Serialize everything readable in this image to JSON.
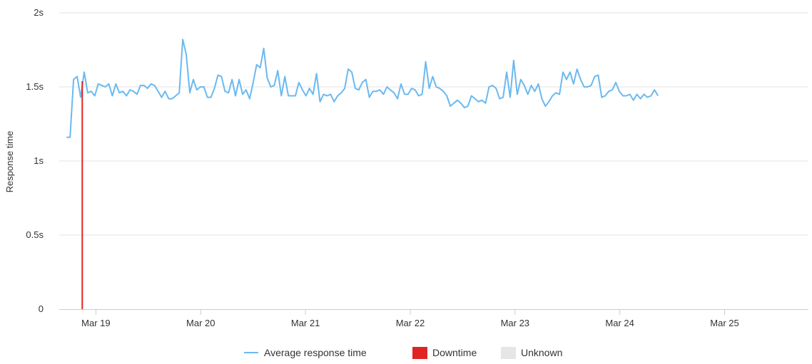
{
  "chart_data": {
    "type": "line",
    "ylabel": "Response time",
    "y_unit": "s",
    "ylim": [
      0,
      2
    ],
    "y_ticks": [
      {
        "value": 0,
        "label": "0"
      },
      {
        "value": 0.5,
        "label": "0.5s"
      },
      {
        "value": 1,
        "label": "1s"
      },
      {
        "value": 1.5,
        "label": "1.5s"
      },
      {
        "value": 2,
        "label": "2s"
      }
    ],
    "x_domain_days": [
      18.65,
      25.8
    ],
    "x_ticks": [
      {
        "value": 19,
        "label": "Mar 19"
      },
      {
        "value": 20,
        "label": "Mar 20"
      },
      {
        "value": 21,
        "label": "Mar 21"
      },
      {
        "value": 22,
        "label": "Mar 22"
      },
      {
        "value": 23,
        "label": "Mar 23"
      },
      {
        "value": 24,
        "label": "Mar 24"
      },
      {
        "value": 25,
        "label": "Mar 25"
      }
    ],
    "grid": true,
    "legend_position": "bottom-center",
    "series": [
      {
        "name": "Average response time",
        "color": "#6bb9f0",
        "x_start_day": 18.72,
        "x_step_days": 0.0336,
        "values": [
          1.16,
          1.16,
          1.55,
          1.57,
          1.43,
          1.6,
          1.46,
          1.47,
          1.44,
          1.52,
          1.51,
          1.5,
          1.52,
          1.44,
          1.52,
          1.46,
          1.47,
          1.44,
          1.48,
          1.47,
          1.45,
          1.51,
          1.51,
          1.49,
          1.52,
          1.51,
          1.47,
          1.43,
          1.47,
          1.42,
          1.42,
          1.44,
          1.46,
          1.82,
          1.72,
          1.46,
          1.55,
          1.48,
          1.5,
          1.5,
          1.43,
          1.43,
          1.49,
          1.58,
          1.57,
          1.47,
          1.46,
          1.55,
          1.44,
          1.55,
          1.45,
          1.48,
          1.42,
          1.53,
          1.65,
          1.63,
          1.76,
          1.56,
          1.5,
          1.51,
          1.61,
          1.44,
          1.57,
          1.44,
          1.44,
          1.44,
          1.53,
          1.48,
          1.44,
          1.49,
          1.45,
          1.59,
          1.4,
          1.45,
          1.44,
          1.45,
          1.4,
          1.44,
          1.46,
          1.49,
          1.62,
          1.6,
          1.49,
          1.48,
          1.53,
          1.55,
          1.43,
          1.47,
          1.47,
          1.48,
          1.45,
          1.5,
          1.48,
          1.46,
          1.42,
          1.52,
          1.45,
          1.45,
          1.49,
          1.48,
          1.44,
          1.45,
          1.67,
          1.49,
          1.57,
          1.5,
          1.49,
          1.47,
          1.44,
          1.37,
          1.39,
          1.41,
          1.39,
          1.36,
          1.37,
          1.44,
          1.42,
          1.4,
          1.41,
          1.39,
          1.5,
          1.51,
          1.49,
          1.42,
          1.43,
          1.6,
          1.43,
          1.68,
          1.45,
          1.55,
          1.51,
          1.45,
          1.51,
          1.47,
          1.52,
          1.42,
          1.37,
          1.4,
          1.44,
          1.46,
          1.45,
          1.6,
          1.55,
          1.6,
          1.52,
          1.62,
          1.55,
          1.5,
          1.5,
          1.51,
          1.57,
          1.58,
          1.43,
          1.44,
          1.47,
          1.48,
          1.53,
          1.47,
          1.44,
          1.44,
          1.45,
          1.41,
          1.45,
          1.42,
          1.45,
          1.43,
          1.44,
          1.48,
          1.44
        ]
      },
      {
        "name": "Downtime",
        "color": "#e02424",
        "x_day": 18.87
      }
    ],
    "legend": [
      {
        "label": "Average response time",
        "color": "#6bb9f0",
        "kind": "line"
      },
      {
        "label": "Downtime",
        "color": "#e02424",
        "kind": "box"
      },
      {
        "label": "Unknown",
        "color": "#e6e6e6",
        "kind": "box"
      }
    ]
  }
}
